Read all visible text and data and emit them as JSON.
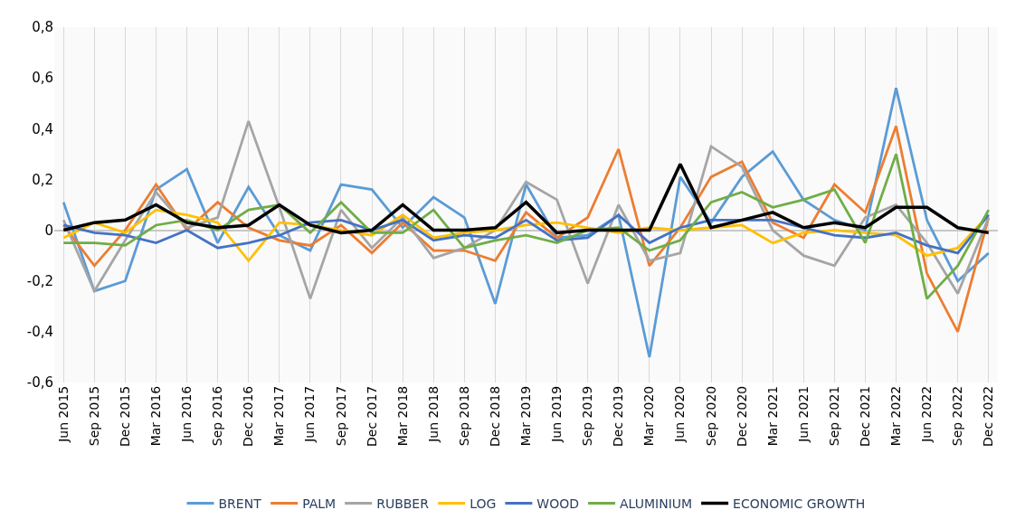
{
  "chart_data": {
    "type": "line",
    "categories": [
      "Jun 2015",
      "Sep 2015",
      "Dec 2015",
      "Mar 2016",
      "Jun 2016",
      "Sep 2016",
      "Dec 2016",
      "Mar 2017",
      "Jun 2017",
      "Sep 2017",
      "Dec 2017",
      "Mar 2018",
      "Jun 2018",
      "Sep 2018",
      "Dec 2018",
      "Mar 2019",
      "Jun 2019",
      "Sep 2019",
      "Dec 2019",
      "Mar 2020",
      "Jun 2020",
      "Sep 2020",
      "Dec 2020",
      "Mar 2021",
      "Jun 2021",
      "Sep 2021",
      "Dec 2021",
      "Mar 2022",
      "Jun 2022",
      "Sep 2022",
      "Dec 2022"
    ],
    "series": [
      {
        "name": "BRENT",
        "color": "#5b9bd5",
        "values": [
          0.11,
          -0.24,
          -0.2,
          0.16,
          0.24,
          -0.05,
          0.17,
          -0.02,
          -0.08,
          0.18,
          0.16,
          0.01,
          0.13,
          0.05,
          -0.29,
          0.18,
          -0.03,
          -0.02,
          0.06,
          -0.5,
          0.21,
          0.03,
          0.21,
          0.31,
          0.12,
          0.04,
          0.0,
          0.56,
          0.04,
          -0.2,
          -0.09
        ]
      },
      {
        "name": "PALM",
        "color": "#ed7d31",
        "values": [
          0.02,
          -0.14,
          0.0,
          0.18,
          0.0,
          0.11,
          0.01,
          -0.04,
          -0.06,
          0.02,
          -0.09,
          0.03,
          -0.08,
          -0.08,
          -0.12,
          0.07,
          -0.03,
          0.05,
          0.32,
          -0.14,
          0.01,
          0.21,
          0.27,
          0.03,
          -0.03,
          0.18,
          0.07,
          0.41,
          -0.17,
          -0.4,
          0.05
        ]
      },
      {
        "name": "RUBBER",
        "color": "#a5a5a5",
        "values": [
          0.04,
          -0.24,
          -0.04,
          0.15,
          0.01,
          0.05,
          0.43,
          0.09,
          -0.27,
          0.08,
          -0.07,
          0.05,
          -0.11,
          -0.07,
          0.0,
          0.19,
          0.12,
          -0.21,
          0.1,
          -0.12,
          -0.09,
          0.33,
          0.25,
          0.0,
          -0.1,
          -0.14,
          0.05,
          0.1,
          -0.05,
          -0.25,
          0.05
        ]
      },
      {
        "name": "LOG",
        "color": "#ffc000",
        "values": [
          -0.03,
          0.03,
          -0.01,
          0.08,
          0.06,
          0.03,
          -0.12,
          0.03,
          0.02,
          0.0,
          -0.02,
          0.06,
          -0.03,
          -0.01,
          0.0,
          0.02,
          0.03,
          0.01,
          -0.01,
          0.01,
          0.0,
          0.01,
          0.02,
          -0.05,
          -0.01,
          0.0,
          -0.01,
          -0.02,
          -0.1,
          -0.07,
          0.06
        ]
      },
      {
        "name": "WOOD",
        "color": "#4472c4",
        "values": [
          0.02,
          -0.01,
          -0.02,
          -0.05,
          0.0,
          -0.07,
          -0.05,
          -0.02,
          0.03,
          0.04,
          0.0,
          0.04,
          -0.04,
          -0.02,
          -0.03,
          0.04,
          -0.04,
          -0.03,
          0.06,
          -0.05,
          0.01,
          0.04,
          0.04,
          0.04,
          0.01,
          -0.02,
          -0.03,
          -0.01,
          -0.06,
          -0.09,
          0.06
        ]
      },
      {
        "name": "ALUMINIUM",
        "color": "#70ad47",
        "values": [
          -0.05,
          -0.05,
          -0.06,
          0.02,
          0.04,
          0.0,
          0.08,
          0.1,
          -0.01,
          0.11,
          -0.01,
          -0.01,
          0.08,
          -0.07,
          -0.04,
          -0.02,
          -0.05,
          0.0,
          0.01,
          -0.08,
          -0.04,
          0.11,
          0.15,
          0.09,
          0.12,
          0.16,
          -0.05,
          0.3,
          -0.27,
          -0.14,
          0.08
        ]
      },
      {
        "name": "ECONOMIC GROWTH",
        "color": "#000000",
        "values": [
          0.0,
          0.03,
          0.04,
          0.1,
          0.03,
          0.01,
          0.02,
          0.1,
          0.02,
          -0.01,
          0.0,
          0.1,
          0.0,
          0.0,
          0.01,
          0.11,
          -0.01,
          0.0,
          0.0,
          0.0,
          0.26,
          0.01,
          0.04,
          0.07,
          0.01,
          0.03,
          0.01,
          0.09,
          0.09,
          0.01,
          -0.01
        ]
      }
    ],
    "ylim": [
      -0.6,
      0.8
    ],
    "yticks": [
      {
        "value": -0.6,
        "label": "-0,6"
      },
      {
        "value": -0.4,
        "label": "-0,4"
      },
      {
        "value": -0.2,
        "label": "-0,2"
      },
      {
        "value": 0,
        "label": "0"
      },
      {
        "value": 0.2,
        "label": "0,2"
      },
      {
        "value": 0.4,
        "label": "0,4"
      },
      {
        "value": 0.6,
        "label": "0,6"
      },
      {
        "value": 0.8,
        "label": "0,8"
      }
    ],
    "grid": "x",
    "legend": "bottom",
    "marker": "none",
    "line_style": "solid"
  }
}
